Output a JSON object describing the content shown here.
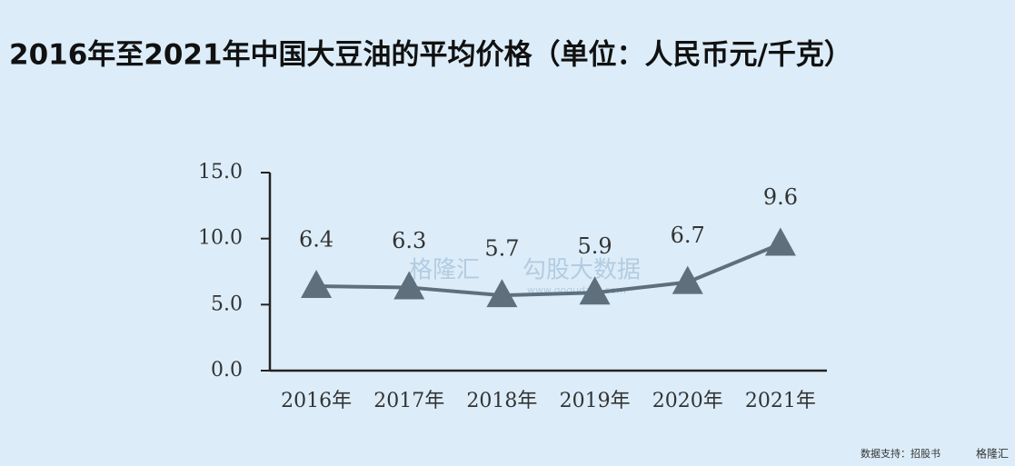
{
  "chart_data": {
    "type": "line",
    "title": "2016年至2021年中国大豆油的平均价格（单位：人民币元/千克）",
    "categories": [
      "2016年",
      "2017年",
      "2018年",
      "2019年",
      "2020年",
      "2021年"
    ],
    "values": [
      6.4,
      6.3,
      5.7,
      5.9,
      6.7,
      9.6
    ],
    "color": "#5f6f7c",
    "ylim": [
      0,
      15
    ],
    "yticks": [
      {
        "value": 0,
        "label": "0.0"
      },
      {
        "value": 5,
        "label": "5.0"
      },
      {
        "value": 10,
        "label": "10.0"
      },
      {
        "value": 15,
        "label": "15.0"
      }
    ],
    "grid": false,
    "watermark": [
      "格隆汇",
      "勾股大数据",
      "www.gogudata.com"
    ],
    "source": "数据支持：招股书",
    "logo": "格隆汇"
  }
}
